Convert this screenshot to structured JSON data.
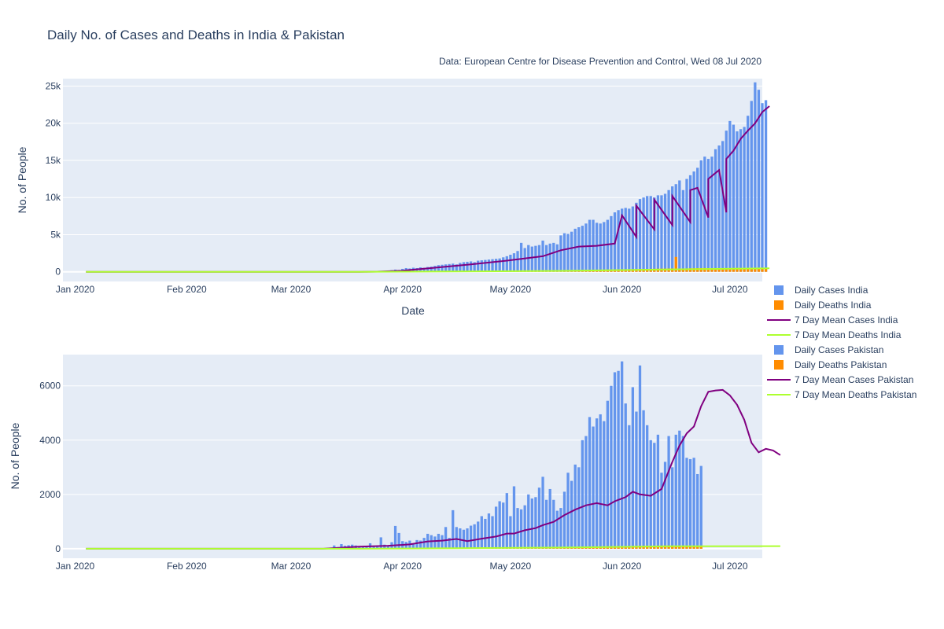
{
  "title": "Daily No. of Cases and Deaths in India & Pakistan",
  "subtitle": "Data: European Centre for Disease Prevention and Control, Wed 08 Jul 2020",
  "colors": {
    "plot_bg": "#e5ecf6",
    "grid": "#ffffff",
    "daily_cases": "#6495ed",
    "daily_deaths": "#ff8c00",
    "mean_cases": "#800080",
    "mean_deaths": "#adff2f"
  },
  "legend": [
    {
      "label": "Daily Cases India",
      "kind": "bar",
      "color": "#6495ed"
    },
    {
      "label": "Daily Deaths India",
      "kind": "bar",
      "color": "#ff8c00"
    },
    {
      "label": "7 Day Mean Cases India",
      "kind": "line",
      "color": "#800080"
    },
    {
      "label": "7 Day Mean Deaths India",
      "kind": "line",
      "color": "#adff2f"
    },
    {
      "label": "Daily Cases Pakistan",
      "kind": "bar",
      "color": "#6495ed"
    },
    {
      "label": "Daily Deaths Pakistan",
      "kind": "bar",
      "color": "#ff8c00"
    },
    {
      "label": "7 Day Mean Cases Pakistan",
      "kind": "line",
      "color": "#800080"
    },
    {
      "label": "7 Day Mean Deaths Pakistan",
      "kind": "line",
      "color": "#adff2f"
    }
  ],
  "chart_data": [
    {
      "type": "bar",
      "xlabel": "Date",
      "ylabel": "No. of People",
      "ylim": [
        -1300,
        26000
      ],
      "yticks": [
        0,
        5000,
        10000,
        15000,
        20000,
        25000
      ],
      "ytick_labels": [
        "0",
        "5k",
        "10k",
        "15k",
        "20k",
        "25k"
      ],
      "xlim": [
        "2020-01-01",
        "2020-07-08"
      ],
      "xticks": [
        "2020-01-01",
        "2020-02-01",
        "2020-03-01",
        "2020-04-01",
        "2020-05-01",
        "2020-06-01",
        "2020-07-01"
      ],
      "xtick_labels": [
        "Jan 2020",
        "Feb 2020",
        "Mar 2020",
        "Apr 2020",
        "May 2020",
        "Jun 2020",
        "Jul 2020"
      ],
      "grid": true,
      "series": [
        {
          "name": "Daily Cases India",
          "type": "bar",
          "color": "#6495ed",
          "x_start": "2020-03-26",
          "values": [
            80,
            90,
            120,
            220,
            300,
            250,
            400,
            500,
            450,
            550,
            500,
            600,
            550,
            650,
            700,
            800,
            900,
            950,
            1000,
            1050,
            1100,
            1000,
            1200,
            1300,
            1350,
            1400,
            1300,
            1500,
            1550,
            1600,
            1650,
            1700,
            1750,
            1800,
            1950,
            2100,
            2300,
            2500,
            2800,
            3900,
            3200,
            3600,
            3400,
            3500,
            3600,
            4200,
            3600,
            3800,
            3900,
            3700,
            4900,
            5200,
            5100,
            5400,
            5800,
            6000,
            6200,
            6500,
            7000,
            7000,
            6600,
            6500,
            6700,
            7000,
            7500,
            8000,
            8300,
            8500,
            8600,
            8500,
            8800,
            9300,
            9800,
            10000,
            10200,
            10200,
            10000,
            10300,
            10300,
            10500,
            11000,
            11500,
            11800,
            12300,
            11000,
            12500,
            13000,
            13500,
            14000,
            15000,
            15500,
            15200,
            15500,
            16500,
            17000,
            17600,
            19000,
            20300,
            19800,
            18900,
            19200,
            19500,
            21000,
            23000,
            25500,
            24500,
            22700,
            23100
          ]
        },
        {
          "name": "Daily Deaths India",
          "type": "bar",
          "color": "#ff8c00",
          "x_start": "2020-03-26",
          "values": [
            2,
            3,
            4,
            5,
            6,
            5,
            8,
            10,
            12,
            15,
            20,
            25,
            30,
            32,
            35,
            40,
            38,
            35,
            40,
            45,
            50,
            52,
            55,
            60,
            50,
            60,
            62,
            65,
            70,
            72,
            75,
            80,
            85,
            90,
            100,
            95,
            100,
            105,
            110,
            120,
            115,
            120,
            125,
            130,
            135,
            140,
            145,
            150,
            155,
            150,
            160,
            170,
            175,
            180,
            190,
            200,
            210,
            220,
            230,
            240,
            250,
            260,
            270,
            280,
            290,
            300,
            310,
            320,
            330,
            340,
            350,
            360,
            370,
            380,
            390,
            400,
            410,
            420,
            430,
            440,
            450,
            460,
            2000,
            380,
            420,
            450,
            470,
            480,
            490,
            500,
            510,
            480,
            450,
            460,
            470,
            480,
            490,
            500,
            510,
            520,
            500,
            480,
            470,
            480,
            490,
            500,
            510,
            520
          ]
        },
        {
          "name": "7 Day Mean Cases India",
          "type": "line",
          "color": "#800080",
          "x_start": "2020-01-04",
          "points": [
            [
              "2020-01-04",
              0
            ],
            [
              "2020-03-20",
              0
            ],
            [
              "2020-03-25",
              20
            ],
            [
              "2020-04-01",
              150
            ],
            [
              "2020-04-10",
              550
            ],
            [
              "2020-04-20",
              1000
            ],
            [
              "2020-04-30",
              1500
            ],
            [
              "2020-05-10",
              2100
            ],
            [
              "2020-05-15",
              2900
            ],
            [
              "2020-05-20",
              3400
            ],
            [
              "2020-05-25",
              3500
            ],
            [
              "2020-05-30",
              3800
            ],
            [
              "2020-06-05",
              4700
            ],
            [
              "2020-06-10",
              5700
            ],
            [
              "2020-06-15",
              6300
            ],
            [
              "2020-06-20",
              6700
            ],
            [
              "2020-06-25",
              7300
            ],
            [
              "2020-06-30",
              8000
            ],
            [
              "2020-06-05",
              8000
            ],
            [
              "2020-06-01",
              7600
            ],
            [
              "2020-06-05",
              8900
            ],
            [
              "2020-06-10",
              9700
            ],
            [
              "2020-06-15",
              10200
            ],
            [
              "2020-06-20",
              11000
            ],
            [
              "2020-06-22",
              11300
            ],
            [
              "2020-06-25",
              12500
            ],
            [
              "2020-06-28",
              13700
            ],
            [
              "2020-06-30",
              15200
            ],
            [
              "2020-07-02",
              16300
            ],
            [
              "2020-07-04",
              17900
            ],
            [
              "2020-07-06",
              19000
            ],
            [
              "2020-07-08",
              20000
            ],
            [
              "2020-07-10",
              21500
            ],
            [
              "2020-07-12",
              22300
            ]
          ]
        },
        {
          "name": "7 Day Mean Deaths India",
          "type": "line",
          "color": "#adff2f",
          "points": [
            [
              "2020-01-04",
              0
            ],
            [
              "2020-03-20",
              0
            ],
            [
              "2020-04-15",
              40
            ],
            [
              "2020-05-15",
              130
            ],
            [
              "2020-06-15",
              330
            ],
            [
              "2020-07-12",
              480
            ]
          ]
        }
      ]
    },
    {
      "type": "bar",
      "ylabel": "No. of People",
      "ylim": [
        -350,
        7150
      ],
      "yticks": [
        0,
        2000,
        4000,
        6000
      ],
      "ytick_labels": [
        "0",
        "2000",
        "4000",
        "6000"
      ],
      "xlim": [
        "2020-01-01",
        "2020-07-08"
      ],
      "xticks": [
        "2020-01-01",
        "2020-02-01",
        "2020-03-01",
        "2020-04-01",
        "2020-05-01",
        "2020-06-01",
        "2020-07-01"
      ],
      "xtick_labels": [
        "Jan 2020",
        "Feb 2020",
        "Mar 2020",
        "Apr 2020",
        "May 2020",
        "Jun 2020",
        "Jul 2020"
      ],
      "grid": true,
      "series": [
        {
          "name": "Daily Cases Pakistan",
          "type": "bar",
          "color": "#6495ed",
          "x_start": "2020-03-12",
          "values": [
            10,
            120,
            60,
            170,
            110,
            130,
            150,
            120,
            100,
            90,
            80,
            200,
            100,
            120,
            420,
            150,
            110,
            240,
            840,
            580,
            280,
            250,
            300,
            200,
            320,
            300,
            400,
            550,
            500,
            450,
            550,
            500,
            800,
            400,
            1420,
            800,
            750,
            700,
            750,
            850,
            900,
            1000,
            1200,
            1100,
            1300,
            1200,
            1550,
            1750,
            1700,
            2050,
            1200,
            2300,
            1500,
            1450,
            1600,
            2000,
            1850,
            1900,
            2250,
            2650,
            1800,
            2200,
            1800,
            1400,
            1500,
            2100,
            2800,
            2500,
            3100,
            3000,
            4000,
            4150,
            4850,
            4500,
            4800,
            4950,
            4700,
            5450,
            6000,
            6500,
            6550,
            6900,
            5350,
            4550,
            5950,
            5050,
            6750,
            5100,
            4550,
            4000,
            3900,
            4200,
            2800,
            3200,
            4150,
            3000,
            4200,
            4350,
            4150,
            3350,
            3300,
            3350,
            2750,
            3050
          ]
        },
        {
          "name": "Daily Deaths Pakistan",
          "type": "bar",
          "color": "#ff8c00",
          "x_start": "2020-03-12",
          "values": [
            0,
            1,
            1,
            2,
            2,
            3,
            3,
            4,
            4,
            5,
            6,
            7,
            8,
            8,
            9,
            10,
            11,
            12,
            13,
            14,
            15,
            15,
            16,
            17,
            18,
            19,
            20,
            20,
            21,
            22,
            23,
            24,
            25,
            25,
            26,
            27,
            28,
            29,
            30,
            31,
            32,
            33,
            34,
            35,
            36,
            37,
            38,
            39,
            40,
            41,
            42,
            43,
            44,
            45,
            46,
            47,
            48,
            49,
            50,
            52,
            54,
            56,
            58,
            60,
            62,
            64,
            66,
            68,
            70,
            72,
            74,
            76,
            78,
            80,
            82,
            84,
            86,
            88,
            90,
            92,
            94,
            96,
            98,
            100,
            102,
            104,
            106,
            108,
            110,
            112,
            114,
            116,
            118,
            120,
            118,
            116,
            114,
            112,
            110,
            108,
            106,
            104,
            102,
            100
          ]
        },
        {
          "name": "7 Day Mean Cases Pakistan",
          "type": "line",
          "color": "#800080",
          "points": [
            [
              "2020-01-04",
              0
            ],
            [
              "2020-03-10",
              0
            ],
            [
              "2020-03-20",
              80
            ],
            [
              "2020-03-28",
              110
            ],
            [
              "2020-04-03",
              160
            ],
            [
              "2020-04-08",
              270
            ],
            [
              "2020-04-12",
              300
            ],
            [
              "2020-04-16",
              360
            ],
            [
              "2020-04-19",
              280
            ],
            [
              "2020-04-23",
              370
            ],
            [
              "2020-04-27",
              450
            ],
            [
              "2020-04-30",
              560
            ],
            [
              "2020-05-02",
              560
            ],
            [
              "2020-05-05",
              680
            ],
            [
              "2020-05-08",
              760
            ],
            [
              "2020-05-10",
              870
            ],
            [
              "2020-05-13",
              990
            ],
            [
              "2020-05-16",
              1240
            ],
            [
              "2020-05-19",
              1440
            ],
            [
              "2020-05-22",
              1600
            ],
            [
              "2020-05-25",
              1680
            ],
            [
              "2020-05-28",
              1600
            ],
            [
              "2020-05-30",
              1750
            ],
            [
              "2020-06-02",
              1900
            ],
            [
              "2020-06-04",
              2100
            ],
            [
              "2020-06-06",
              2000
            ],
            [
              "2020-06-09",
              1950
            ],
            [
              "2020-06-12",
              2200
            ],
            [
              "2020-06-15",
              3200
            ],
            [
              "2020-06-17",
              3800
            ],
            [
              "2020-06-19",
              4250
            ],
            [
              "2020-06-21",
              4500
            ],
            [
              "2020-06-23",
              5250
            ],
            [
              "2020-06-25",
              5780
            ],
            [
              "2020-06-27",
              5830
            ],
            [
              "2020-06-29",
              5850
            ],
            [
              "2020-07-01",
              5650
            ],
            [
              "2020-07-03",
              5300
            ],
            [
              "2020-07-05",
              4750
            ],
            [
              "2020-07-07",
              3900
            ],
            [
              "2020-07-09",
              3550
            ],
            [
              "2020-07-11",
              3680
            ],
            [
              "2020-07-13",
              3620
            ],
            [
              "2020-07-15",
              3450
            ]
          ]
        },
        {
          "name": "7 Day Mean Deaths Pakistan",
          "type": "line",
          "color": "#adff2f",
          "points": [
            [
              "2020-01-04",
              0
            ],
            [
              "2020-03-20",
              0
            ],
            [
              "2020-04-15",
              20
            ],
            [
              "2020-05-15",
              45
            ],
            [
              "2020-06-15",
              90
            ],
            [
              "2020-07-15",
              95
            ]
          ]
        }
      ]
    }
  ]
}
